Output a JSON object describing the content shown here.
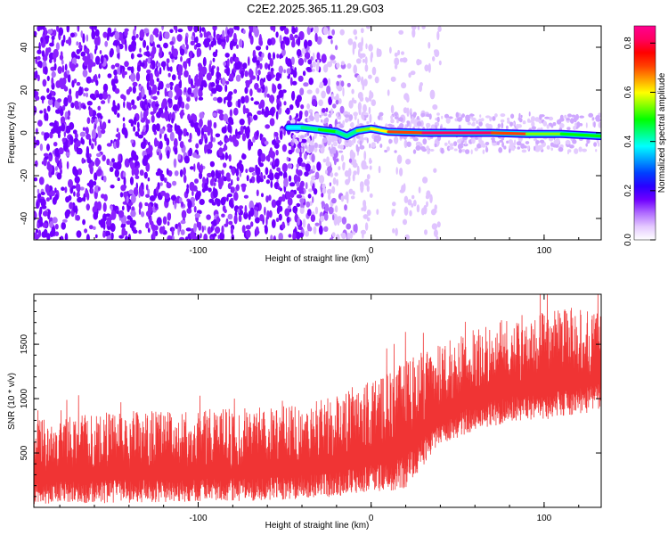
{
  "title": "C2E2.2025.365.11.29.G03",
  "chart_data": [
    {
      "type": "heatmap",
      "name": "spectrogram",
      "xlabel": "Height of straight line (km)",
      "ylabel": "Frequency (Hz)",
      "xlim": [
        -195,
        133
      ],
      "ylim": [
        -50,
        50
      ],
      "xticks": [
        -100,
        0,
        100
      ],
      "yticks": [
        -40,
        -20,
        0,
        20,
        40
      ],
      "colorbar": {
        "label": "Normalized spectral amplitude",
        "range": [
          0,
          0.87
        ],
        "ticks": [
          0.0,
          0.2,
          0.4,
          0.6,
          0.8
        ],
        "colors": [
          "#ffffff",
          "#e4c8ff",
          "#b06cff",
          "#7000ff",
          "#2a00ff",
          "#0040ff",
          "#00a0ff",
          "#00ffff",
          "#00ff80",
          "#00ff00",
          "#80ff00",
          "#ffff00",
          "#ffa000",
          "#ff4000",
          "#ff0000",
          "#ff0060",
          "#ff0090"
        ]
      },
      "noise_band": {
        "x_start": -195,
        "x_end": 10,
        "strong_until": -40,
        "fade_until": 10
      },
      "signal_track": [
        {
          "x": -48,
          "freq": 2.5,
          "amp": 0.35
        },
        {
          "x": -40,
          "freq": 2.5,
          "amp": 0.4
        },
        {
          "x": -30,
          "freq": 1.5,
          "amp": 0.5
        },
        {
          "x": -20,
          "freq": 0.5,
          "amp": 0.45
        },
        {
          "x": -14,
          "freq": -1.5,
          "amp": 0.4
        },
        {
          "x": -8,
          "freq": 1.0,
          "amp": 0.5
        },
        {
          "x": 0,
          "freq": 2.0,
          "amp": 0.55
        },
        {
          "x": 10,
          "freq": 0.5,
          "amp": 0.65
        },
        {
          "x": 30,
          "freq": 0.0,
          "amp": 0.8
        },
        {
          "x": 50,
          "freq": 0.0,
          "amp": 0.87
        },
        {
          "x": 70,
          "freq": 0.0,
          "amp": 0.8
        },
        {
          "x": 90,
          "freq": -0.5,
          "amp": 0.6
        },
        {
          "x": 110,
          "freq": -0.5,
          "amp": 0.5
        },
        {
          "x": 133,
          "freq": -1.5,
          "amp": 0.45
        }
      ]
    },
    {
      "type": "line",
      "name": "snr",
      "xlabel": "Height of straight line (km)",
      "ylabel": "SNR (10 * v/v)",
      "xlim": [
        -195,
        133
      ],
      "ylim": [
        0,
        1960
      ],
      "xticks": [
        -100,
        0,
        100
      ],
      "yticks": [
        500,
        1000,
        1500
      ],
      "color": "#f03434",
      "envelope": {
        "x": [
          -195,
          -150,
          -100,
          -60,
          -40,
          -20,
          -5,
          10,
          20,
          25,
          40,
          60,
          80,
          100,
          120,
          133
        ],
        "low": [
          30,
          40,
          50,
          60,
          80,
          100,
          130,
          150,
          170,
          280,
          580,
          700,
          780,
          800,
          850,
          900
        ],
        "high": [
          800,
          880,
          900,
          920,
          950,
          1050,
          1150,
          1250,
          1350,
          1400,
          1500,
          1650,
          1750,
          1800,
          1850,
          1850
        ]
      }
    }
  ]
}
